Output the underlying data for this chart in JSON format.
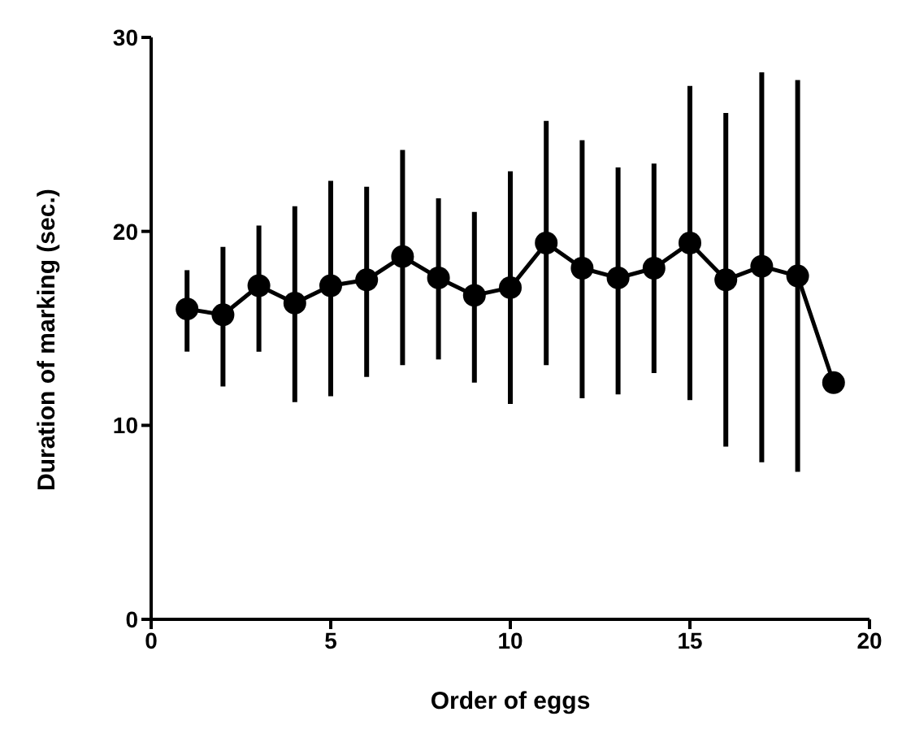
{
  "chart_data": {
    "type": "line",
    "xlabel": "Order of eggs",
    "ylabel": "Duration of marking (sec.)",
    "x": [
      1,
      2,
      3,
      4,
      5,
      6,
      7,
      8,
      9,
      10,
      11,
      12,
      13,
      14,
      15,
      16,
      17,
      18,
      19
    ],
    "series": [
      {
        "color": "#000000",
        "values": [
          16.0,
          15.7,
          17.2,
          16.3,
          17.2,
          17.5,
          18.7,
          17.6,
          16.7,
          17.1,
          19.4,
          18.1,
          17.6,
          18.1,
          19.4,
          17.5,
          18.2,
          17.7,
          12.2
        ],
        "errors": [
          [
            13.8,
            18.0
          ],
          [
            12.0,
            19.2
          ],
          [
            13.8,
            20.3
          ],
          [
            11.2,
            21.3
          ],
          [
            11.5,
            22.6
          ],
          [
            12.5,
            22.3
          ],
          [
            13.1,
            24.2
          ],
          [
            13.4,
            21.7
          ],
          [
            12.2,
            21.0
          ],
          [
            11.1,
            23.1
          ],
          [
            13.1,
            25.7
          ],
          [
            11.4,
            24.7
          ],
          [
            11.6,
            23.3
          ],
          [
            12.7,
            23.5
          ],
          [
            11.3,
            27.5
          ],
          [
            8.9,
            26.1
          ],
          [
            8.1,
            28.2
          ],
          [
            7.6,
            27.8
          ],
          null
        ]
      }
    ],
    "xlim": [
      0,
      20
    ],
    "xticks": [
      0,
      5,
      10,
      15,
      20
    ],
    "ylim": [
      0,
      30
    ],
    "yticks": [
      0,
      10,
      20,
      30
    ],
    "grid": false,
    "legend": false,
    "marker": "circle",
    "line_style": "solid"
  }
}
